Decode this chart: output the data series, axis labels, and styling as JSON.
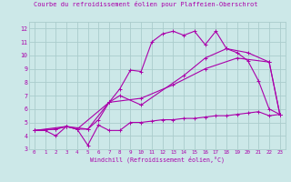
{
  "title": "Courbe du refroidissement éolien pour Plaffeien-Oberschrot",
  "xlabel": "Windchill (Refroidissement éolien,°C)",
  "xlim": [
    -0.5,
    23.5
  ],
  "ylim": [
    3,
    12.5
  ],
  "xticks": [
    0,
    1,
    2,
    3,
    4,
    5,
    6,
    7,
    8,
    9,
    10,
    11,
    12,
    13,
    14,
    15,
    16,
    17,
    18,
    19,
    20,
    21,
    22,
    23
  ],
  "yticks": [
    3,
    4,
    5,
    6,
    7,
    8,
    9,
    10,
    11,
    12
  ],
  "bg_color": "#cce8e8",
  "grid_color": "#aacccc",
  "line_color": "#aa00aa",
  "lines": [
    {
      "x": [
        0,
        1,
        2,
        3,
        4,
        5,
        6,
        7,
        8,
        9,
        10,
        11,
        12,
        13,
        14,
        15,
        16,
        17,
        18,
        19,
        20,
        21,
        22,
        23
      ],
      "y": [
        4.4,
        4.4,
        4.0,
        4.7,
        4.5,
        3.3,
        4.8,
        4.4,
        4.4,
        5.0,
        5.0,
        5.1,
        5.2,
        5.2,
        5.3,
        5.3,
        5.4,
        5.5,
        5.5,
        5.6,
        5.7,
        5.8,
        5.5,
        5.6
      ]
    },
    {
      "x": [
        0,
        2,
        3,
        4,
        5,
        6,
        7,
        8,
        9,
        10,
        11,
        12,
        13,
        14,
        15,
        16,
        17,
        18,
        19,
        20,
        21,
        22,
        23
      ],
      "y": [
        4.4,
        4.5,
        4.7,
        4.5,
        4.5,
        5.2,
        6.5,
        7.5,
        8.9,
        8.8,
        11.0,
        11.6,
        11.8,
        11.5,
        11.8,
        10.8,
        11.8,
        10.5,
        10.2,
        9.6,
        8.1,
        6.0,
        5.6
      ]
    },
    {
      "x": [
        0,
        2,
        3,
        4,
        7,
        8,
        10,
        14,
        16,
        18,
        20,
        22,
        23
      ],
      "y": [
        4.4,
        4.5,
        4.7,
        4.5,
        6.5,
        7.0,
        6.3,
        8.5,
        9.8,
        10.5,
        10.2,
        9.5,
        5.6
      ]
    },
    {
      "x": [
        0,
        3,
        5,
        7,
        10,
        13,
        16,
        19,
        22,
        23
      ],
      "y": [
        4.4,
        4.7,
        4.5,
        6.5,
        6.8,
        7.8,
        9.0,
        9.8,
        9.5,
        5.6
      ]
    }
  ]
}
